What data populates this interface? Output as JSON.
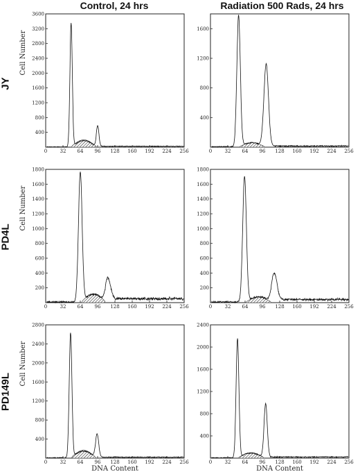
{
  "column_titles": [
    "Control, 24 hrs",
    "Radiation 500 Rads, 24 hrs"
  ],
  "row_labels": [
    "JY",
    "PD4L",
    "PD149L"
  ],
  "chart_data": [
    {
      "type": "area",
      "row": "JY",
      "column": "Control, 24 hrs",
      "xlabel": "",
      "ylabel": "Cell Number",
      "xticks": [
        "0",
        "32",
        "64",
        "96",
        "128",
        "160",
        "192",
        "224",
        "256"
      ],
      "yticks": [
        "400",
        "800",
        "1200",
        "1600",
        "2000",
        "2400",
        "2800",
        "3200",
        "3600"
      ],
      "xlim": [
        0,
        256
      ],
      "ylim": [
        0,
        3600
      ],
      "peaks": [
        {
          "x": 47,
          "height": 3350,
          "sigma": 2.2
        },
        {
          "x": 96,
          "height": 560,
          "sigma": 2.4
        }
      ],
      "shaded_range": [
        48,
        93
      ],
      "shaded_level": 180,
      "baseline_noise": 15,
      "tail": 10
    },
    {
      "type": "area",
      "row": "JY",
      "column": "Radiation 500 Rads, 24 hrs",
      "xlabel": "",
      "ylabel": "",
      "xticks": [
        "0",
        "32",
        "64",
        "96",
        "128",
        "160",
        "192",
        "224",
        "256"
      ],
      "yticks": [
        "400",
        "800",
        "1200",
        "1600"
      ],
      "xlim": [
        0,
        256
      ],
      "ylim": [
        0,
        1800
      ],
      "peaks": [
        {
          "x": 52,
          "height": 1780,
          "sigma": 3.2
        },
        {
          "x": 103,
          "height": 1110,
          "sigma": 4.2
        }
      ],
      "shaded_range": [
        54,
        100
      ],
      "shaded_level": 55,
      "baseline_noise": 12,
      "tail": 6
    },
    {
      "type": "area",
      "row": "PD4L",
      "column": "Control, 24 hrs",
      "xlabel": "",
      "ylabel": "Cell Number",
      "xticks": [
        "0",
        "32",
        "64",
        "96",
        "128",
        "160",
        "192",
        "224",
        "256"
      ],
      "yticks": [
        "200",
        "400",
        "600",
        "800",
        "1000",
        "1200",
        "1400",
        "1600",
        "1800"
      ],
      "xlim": [
        0,
        256
      ],
      "ylim": [
        0,
        1800
      ],
      "peaks": [
        {
          "x": 64,
          "height": 1760,
          "sigma": 3.4
        },
        {
          "x": 115,
          "height": 290,
          "sigma": 4.8
        }
      ],
      "shaded_range": [
        67,
        110
      ],
      "shaded_level": 110,
      "baseline_noise": 18,
      "tail": 30
    },
    {
      "type": "area",
      "row": "PD4L",
      "column": "Radiation 500 Rads, 24 hrs",
      "xlabel": "",
      "ylabel": "",
      "xticks": [
        "0",
        "32",
        "64",
        "96",
        "128",
        "160",
        "192",
        "224",
        "256"
      ],
      "yticks": [
        "200",
        "400",
        "600",
        "800",
        "1000",
        "1200",
        "1400",
        "1600",
        "1800"
      ],
      "xlim": [
        0,
        256
      ],
      "ylim": [
        0,
        1800
      ],
      "peaks": [
        {
          "x": 63,
          "height": 1700,
          "sigma": 3.4
        },
        {
          "x": 118,
          "height": 360,
          "sigma": 5.0
        }
      ],
      "shaded_range": [
        66,
        112
      ],
      "shaded_level": 70,
      "baseline_noise": 18,
      "tail": 22
    },
    {
      "type": "area",
      "row": "PD149L",
      "column": "Control, 24 hrs",
      "xlabel": "DNA Content",
      "ylabel": "Cell Number",
      "xticks": [
        "0",
        "32",
        "64",
        "96",
        "128",
        "160",
        "192",
        "224",
        "256"
      ],
      "yticks": [
        "400",
        "800",
        "1200",
        "1600",
        "2000",
        "2400",
        "2800"
      ],
      "xlim": [
        0,
        256
      ],
      "ylim": [
        0,
        2800
      ],
      "peaks": [
        {
          "x": 46,
          "height": 2630,
          "sigma": 2.5
        },
        {
          "x": 95,
          "height": 490,
          "sigma": 3.0
        }
      ],
      "shaded_range": [
        48,
        92
      ],
      "shaded_level": 150,
      "baseline_noise": 15,
      "tail": 8
    },
    {
      "type": "area",
      "row": "PD149L",
      "column": "Radiation 500 Rads, 24 hrs",
      "xlabel": "DNA Content",
      "ylabel": "",
      "xticks": [
        "0",
        "32",
        "64",
        "96",
        "128",
        "160",
        "192",
        "224",
        "256"
      ],
      "yticks": [
        "400",
        "800",
        "1200",
        "1600",
        "2000",
        "2400"
      ],
      "xlim": [
        0,
        256
      ],
      "ylim": [
        0,
        2400
      ],
      "peaks": [
        {
          "x": 50,
          "height": 2150,
          "sigma": 2.6
        },
        {
          "x": 102,
          "height": 960,
          "sigma": 3.0
        }
      ],
      "shaded_range": [
        52,
        98
      ],
      "shaded_level": 90,
      "baseline_noise": 12,
      "tail": 10
    }
  ]
}
